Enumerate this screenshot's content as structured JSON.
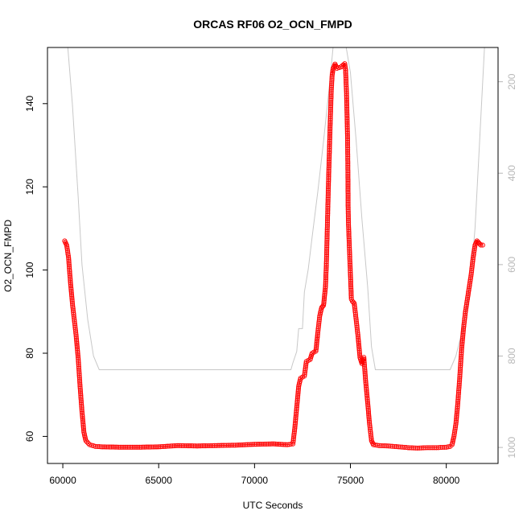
{
  "chart_data": {
    "type": "scatter",
    "title": "ORCAS RF06 O2_OCN_FMPD",
    "xlabel": "UTC Seconds",
    "ylabel": "O2_OCN_FMPD",
    "xlim": [
      59200,
      82700
    ],
    "ylim": [
      53.5,
      153.5
    ],
    "x_ticks": [
      60000,
      65000,
      70000,
      75000,
      80000
    ],
    "y_ticks": [
      60,
      80,
      100,
      120,
      140
    ],
    "grid": false,
    "legend": "none",
    "colors": {
      "series": "#ff0000",
      "secondary": "#c8c8c8",
      "axis": "#000000",
      "secondary_axis": "#b8b8b8"
    },
    "secondary_axis": {
      "side": "right",
      "inverted": true,
      "ylim": [
        1035,
        125
      ],
      "ticks": [
        200,
        400,
        600,
        800,
        1000
      ]
    },
    "series": [
      {
        "marker": "open-circle",
        "color": "#ff0000",
        "points": [
          [
            60100,
            107
          ],
          [
            60200,
            106
          ],
          [
            60300,
            103
          ],
          [
            60400,
            97
          ],
          [
            60500,
            92
          ],
          [
            60600,
            88
          ],
          [
            60700,
            84
          ],
          [
            60800,
            79
          ],
          [
            60900,
            72
          ],
          [
            61000,
            66
          ],
          [
            61100,
            61
          ],
          [
            61200,
            59
          ],
          [
            61400,
            58
          ],
          [
            61700,
            57.6
          ],
          [
            62000,
            57.5
          ],
          [
            63000,
            57.4
          ],
          [
            64000,
            57.4
          ],
          [
            65000,
            57.5
          ],
          [
            66000,
            57.8
          ],
          [
            67000,
            57.7
          ],
          [
            68000,
            57.8
          ],
          [
            69000,
            57.9
          ],
          [
            70000,
            58.1
          ],
          [
            71000,
            58.2
          ],
          [
            71700,
            58
          ],
          [
            72000,
            58.2
          ],
          [
            72100,
            62
          ],
          [
            72200,
            67
          ],
          [
            72300,
            72
          ],
          [
            72400,
            74
          ],
          [
            72600,
            74.5
          ],
          [
            72700,
            78
          ],
          [
            72900,
            78.5
          ],
          [
            73000,
            80
          ],
          [
            73200,
            80.5
          ],
          [
            73300,
            85
          ],
          [
            73400,
            89
          ],
          [
            73500,
            91
          ],
          [
            73600,
            91.5
          ],
          [
            73700,
            96
          ],
          [
            73750,
            102
          ],
          [
            73800,
            111
          ],
          [
            73850,
            120
          ],
          [
            73900,
            128
          ],
          [
            73950,
            136
          ],
          [
            74000,
            143
          ],
          [
            74050,
            147
          ],
          [
            74100,
            148.5
          ],
          [
            74200,
            149.5
          ],
          [
            74300,
            148.5
          ],
          [
            74500,
            148.8
          ],
          [
            74700,
            149.6
          ],
          [
            74750,
            148
          ],
          [
            74800,
            142
          ],
          [
            74850,
            132
          ],
          [
            74870,
            123
          ],
          [
            74880,
            115
          ],
          [
            74900,
            111
          ],
          [
            74950,
            105
          ],
          [
            75000,
            99
          ],
          [
            75050,
            93
          ],
          [
            75100,
            92.5
          ],
          [
            75200,
            92
          ],
          [
            75300,
            88
          ],
          [
            75400,
            84
          ],
          [
            75500,
            79
          ],
          [
            75600,
            77.5
          ],
          [
            75700,
            79
          ],
          [
            75800,
            73
          ],
          [
            75900,
            68
          ],
          [
            76000,
            63
          ],
          [
            76100,
            59
          ],
          [
            76200,
            58
          ],
          [
            76500,
            57.8
          ],
          [
            77000,
            57.7
          ],
          [
            77500,
            57.5
          ],
          [
            78000,
            57.3
          ],
          [
            78500,
            57.2
          ],
          [
            79000,
            57.3
          ],
          [
            79500,
            57.3
          ],
          [
            80000,
            57.4
          ],
          [
            80200,
            57.6
          ],
          [
            80300,
            58
          ],
          [
            80400,
            60
          ],
          [
            80500,
            63
          ],
          [
            80600,
            68
          ],
          [
            80700,
            74
          ],
          [
            80800,
            81
          ],
          [
            80900,
            86
          ],
          [
            81000,
            90
          ],
          [
            81100,
            93
          ],
          [
            81200,
            96
          ],
          [
            81300,
            99
          ],
          [
            81400,
            103
          ],
          [
            81500,
            106
          ],
          [
            81600,
            107
          ],
          [
            81700,
            106.5
          ],
          [
            81800,
            106
          ],
          [
            81900,
            106
          ]
        ]
      },
      {
        "name": "",
        "marker": "line",
        "color": "#c8c8c8",
        "axis": "secondary",
        "points": [
          [
            60100,
            40
          ],
          [
            60500,
            250
          ],
          [
            60800,
            450
          ],
          [
            61000,
            600
          ],
          [
            61300,
            720
          ],
          [
            61600,
            800
          ],
          [
            61900,
            830
          ],
          [
            62000,
            830
          ],
          [
            71700,
            830
          ],
          [
            71900,
            830
          ],
          [
            72000,
            815
          ],
          [
            72200,
            790
          ],
          [
            72300,
            740
          ],
          [
            72500,
            740
          ],
          [
            72600,
            660
          ],
          [
            72800,
            610
          ],
          [
            73000,
            540
          ],
          [
            73300,
            440
          ],
          [
            73600,
            330
          ],
          [
            73900,
            210
          ],
          [
            74200,
            80
          ],
          [
            74600,
            80
          ],
          [
            75000,
            180
          ],
          [
            75300,
            330
          ],
          [
            75600,
            500
          ],
          [
            75900,
            650
          ],
          [
            76100,
            780
          ],
          [
            76300,
            830
          ],
          [
            80000,
            830
          ],
          [
            80200,
            830
          ],
          [
            80500,
            800
          ],
          [
            80800,
            750
          ],
          [
            81100,
            690
          ],
          [
            81300,
            620
          ],
          [
            81500,
            520
          ],
          [
            81700,
            360
          ],
          [
            81900,
            200
          ],
          [
            82100,
            40
          ]
        ]
      }
    ]
  }
}
